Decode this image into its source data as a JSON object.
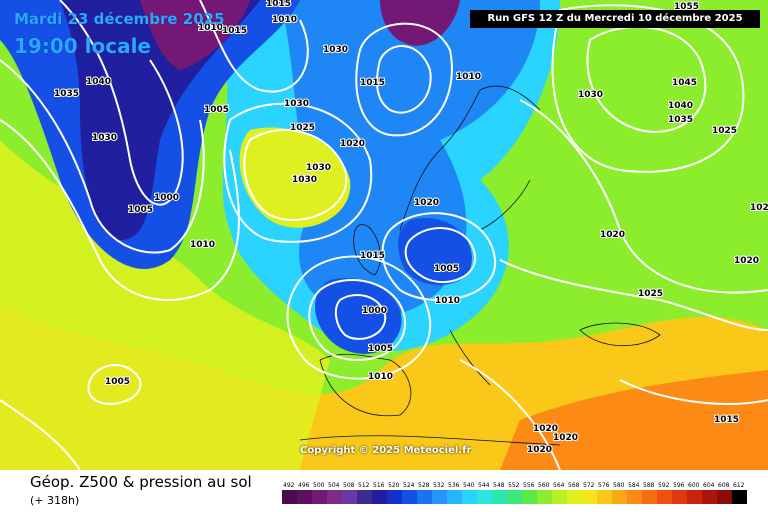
{
  "header": {
    "date": "Mardi 23 décembre 2025",
    "time": "19:00 locale",
    "run": "Run GFS 12 Z du Mercredi 10 décembre 2025"
  },
  "copyright": "Copyright © 2025 Meteociel.fr",
  "footer": {
    "title": "Géop. Z500 & pression au sol",
    "offset": "(+ 318h)"
  },
  "legend": {
    "values": [
      "492",
      "496",
      "500",
      "504",
      "508",
      "512",
      "516",
      "520",
      "524",
      "528",
      "532",
      "536",
      "540",
      "544",
      "548",
      "552",
      "556",
      "560",
      "564",
      "568",
      "572",
      "576",
      "580",
      "584",
      "588",
      "592",
      "596",
      "600",
      "604",
      "608",
      "612"
    ],
    "colors": [
      "#4b0c4b",
      "#5e1060",
      "#731874",
      "#7d2a8a",
      "#6a3aa0",
      "#3b2a8f",
      "#1f1fa0",
      "#1430c8",
      "#1450e6",
      "#1b72f2",
      "#2594ff",
      "#26b4ff",
      "#2bd4ff",
      "#2ee6e0",
      "#2ae8b0",
      "#3ae87c",
      "#5ce84a",
      "#8ced2c",
      "#b8f024",
      "#dff020",
      "#f5e61a",
      "#f9c818",
      "#fba816",
      "#fc8a14",
      "#f86c12",
      "#ef5010",
      "#e0380e",
      "#c8240c",
      "#ad140a",
      "#8c0a08",
      "#000000"
    ]
  },
  "isobars": [
    "1010",
    "1015",
    "1010",
    "1015",
    "1030",
    "1040",
    "1035",
    "1005",
    "1000",
    "1030",
    "1005",
    "1010",
    "1030",
    "1020",
    "1025",
    "1030",
    "1030",
    "1020",
    "1015",
    "1010",
    "1000",
    "1005",
    "1010",
    "1005",
    "1015",
    "1020",
    "1030",
    "1020",
    "1040",
    "1035",
    "1025",
    "1045",
    "1020",
    "1025",
    "1055",
    "1020",
    "1015",
    "1020",
    "1020",
    "1005",
    "1010"
  ]
}
